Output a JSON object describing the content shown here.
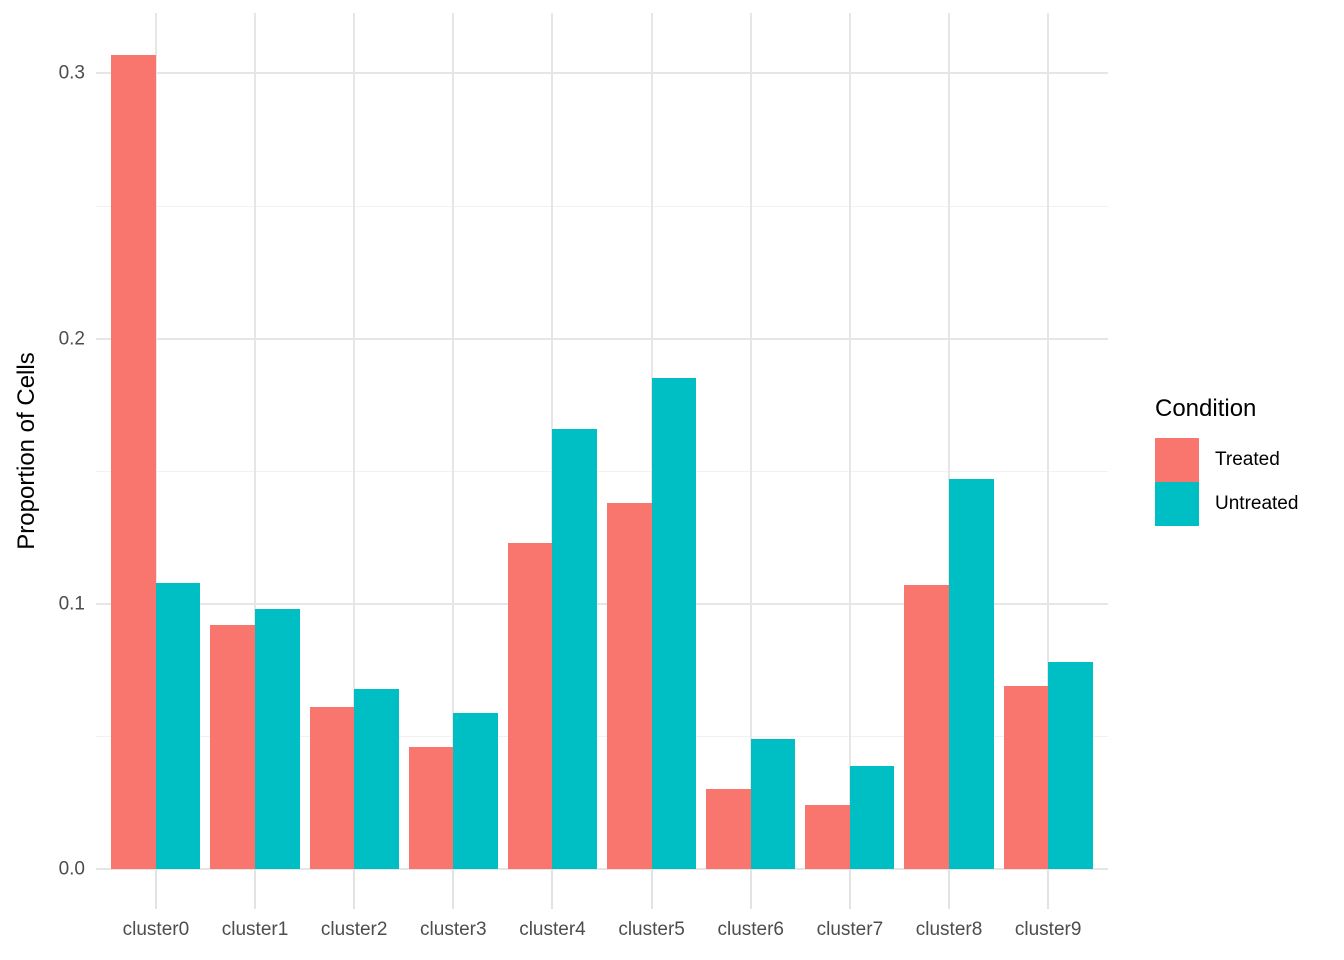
{
  "chart_data": {
    "type": "bar",
    "title": "",
    "xlabel": "",
    "ylabel": "Proportion of Cells",
    "categories": [
      "cluster0",
      "cluster1",
      "cluster2",
      "cluster3",
      "cluster4",
      "cluster5",
      "cluster6",
      "cluster7",
      "cluster8",
      "cluster9"
    ],
    "series": [
      {
        "name": "Treated",
        "color": "#F8766D",
        "values": [
          0.307,
          0.092,
          0.061,
          0.046,
          0.123,
          0.138,
          0.03,
          0.024,
          0.107,
          0.069
        ]
      },
      {
        "name": "Untreated",
        "color": "#00BFC4",
        "values": [
          0.108,
          0.098,
          0.068,
          0.059,
          0.166,
          0.185,
          0.049,
          0.039,
          0.147,
          0.078
        ]
      }
    ],
    "y_axis": {
      "tick_labels": [
        "0.0",
        "0.1",
        "0.2",
        "0.3"
      ],
      "tick_values": [
        0,
        0.1,
        0.2,
        0.3
      ],
      "minor_values": [
        0.05,
        0.15,
        0.25
      ],
      "range": [
        0,
        0.3228
      ]
    },
    "legend": {
      "title": "Condition",
      "position": "right"
    },
    "grid": true,
    "style": {
      "background": "#FFFFFF",
      "grid_major_color": "#E6E6E6",
      "grid_minor_color": "#F2F2F2",
      "tick_color": "#E3E3E3",
      "axis_text_color": "#4D4D4D",
      "title_text_color": "#000000"
    }
  }
}
